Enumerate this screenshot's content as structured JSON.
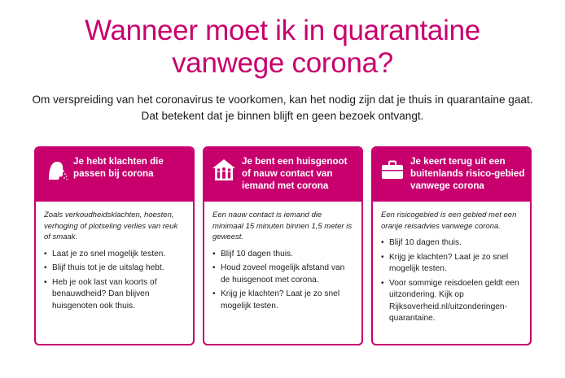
{
  "heading": {
    "line1": "Wanneer moet ik in quarantaine",
    "line2": "vanwege corona?"
  },
  "intro": {
    "line1": "Om verspreiding van het coronavirus te voorkomen, kan het nodig zijn dat je thuis in quarantaine gaat.",
    "line2": "Dat betekent dat je binnen blijft en geen bezoek ontvangt."
  },
  "colors": {
    "accent": "#c8006e",
    "text": "#1a1a1a"
  },
  "bullet_char": "•",
  "cards": [
    {
      "icon": "coughing-person-icon",
      "title": "Je hebt klachten die passen bij corona",
      "description": "Zoals verkoudheidsklachten, hoesten, verhoging of plotseling verlies van reuk of smaak.",
      "items": [
        "Laat je zo snel mogelijk testen.",
        "Blijf thuis tot je de uitslag hebt.",
        "Heb je ook last van koorts of benauwdheid? Dan blijven huisgenoten ook thuis."
      ]
    },
    {
      "icon": "household-icon",
      "title": "Je bent een huisgenoot of nauw contact van iemand met corona",
      "description": "Een nauw contact is iemand die minimaal 15 minuten binnen 1,5 meter is geweest.",
      "items": [
        "Blijf 10 dagen thuis.",
        "Houd zoveel mogelijk afstand van de huisgenoot met corona.",
        "Krijg je klachten? Laat je zo snel mogelijk testen."
      ]
    },
    {
      "icon": "suitcase-icon",
      "title": "Je keert terug uit een buitenlands risico-gebied vanwege corona",
      "description": "Een risicogebied is een gebied met een oranje reisadvies vanwege corona.",
      "items": [
        "Blijf 10 dagen thuis.",
        "Krijg je klachten? Laat je zo snel mogelijk testen.",
        "Voor sommige reisdoelen geldt een uitzondering. Kijk op Rijksoverheid.nl/uitzonderingen-quarantaine."
      ]
    }
  ]
}
